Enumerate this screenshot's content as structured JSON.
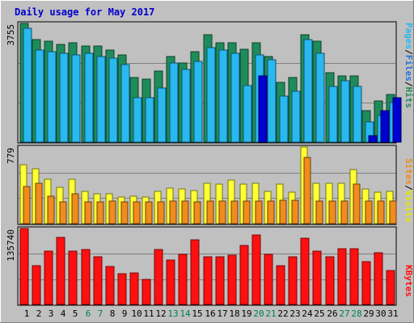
{
  "chart_data": [
    {
      "type": "bar",
      "title": "Daily usage for May 2017",
      "categories": [
        "1",
        "2",
        "3",
        "4",
        "5",
        "6",
        "7",
        "8",
        "9",
        "10",
        "11",
        "12",
        "13",
        "14",
        "15",
        "16",
        "17",
        "18",
        "19",
        "20",
        "21",
        "22",
        "23",
        "24",
        "25",
        "26",
        "27",
        "28",
        "29",
        "30",
        "31"
      ],
      "weekend_days": [
        "6",
        "7",
        "13",
        "14",
        "20",
        "21",
        "27",
        "28"
      ],
      "ylabel_parts": [
        "Pages",
        "/",
        "Files",
        "/",
        "Hits"
      ],
      "ymax_label": "3755",
      "ylim": [
        0,
        3755
      ],
      "series": [
        {
          "name": "Hits",
          "color": "#1e8c5a",
          "values": [
            3755,
            3250,
            3200,
            3100,
            3150,
            3050,
            3050,
            2900,
            2750,
            2050,
            2000,
            2250,
            2700,
            2500,
            2850,
            3400,
            3150,
            3150,
            2950,
            3150,
            2700,
            1900,
            2050,
            3400,
            3200,
            2200,
            2100,
            2100,
            1000,
            1300,
            1500
          ]
        },
        {
          "name": "Files",
          "color": "#29b8f0",
          "values": [
            3600,
            2900,
            2850,
            2800,
            2750,
            2800,
            2700,
            2650,
            2450,
            1400,
            1400,
            1700,
            2500,
            2300,
            2550,
            3000,
            2900,
            2800,
            1800,
            2750,
            2600,
            1450,
            1600,
            3250,
            2800,
            1750,
            1950,
            1750,
            650,
            850,
            1250
          ]
        },
        {
          "name": "Pages",
          "color": "#0000d0",
          "values": [
            0,
            0,
            0,
            0,
            0,
            0,
            0,
            0,
            0,
            0,
            0,
            0,
            0,
            0,
            0,
            0,
            0,
            0,
            0,
            2100,
            0,
            0,
            0,
            0,
            0,
            0,
            0,
            0,
            200,
            1000,
            1400
          ]
        }
      ]
    },
    {
      "type": "bar",
      "ylabel_parts": [
        "Sites",
        "/",
        "Visits"
      ],
      "ymax_label": "779",
      "ylim": [
        0,
        779
      ],
      "series": [
        {
          "name": "Visits",
          "color": "#ffff33",
          "values": [
            600,
            560,
            450,
            370,
            450,
            330,
            300,
            300,
            270,
            280,
            270,
            330,
            360,
            350,
            340,
            410,
            400,
            440,
            400,
            410,
            330,
            400,
            320,
            779,
            410,
            410,
            410,
            550,
            350,
            320,
            330
          ]
        },
        {
          "name": "Sites",
          "color": "#f08c1e",
          "values": [
            380,
            410,
            280,
            220,
            300,
            220,
            220,
            230,
            220,
            220,
            220,
            220,
            230,
            230,
            220,
            230,
            230,
            230,
            230,
            230,
            230,
            240,
            240,
            670,
            230,
            230,
            230,
            400,
            230,
            230,
            230
          ]
        }
      ]
    },
    {
      "type": "bar",
      "ylabel_parts": [
        "KBytes"
      ],
      "ymax_label": "135740",
      "ylim": [
        0,
        135740
      ],
      "series": [
        {
          "name": "KBytes",
          "color": "#ff1010",
          "values": [
            135740,
            70000,
            95000,
            120000,
            95000,
            98000,
            85000,
            68000,
            55000,
            57000,
            45000,
            98000,
            80000,
            90000,
            115000,
            85000,
            85000,
            88000,
            105000,
            124000,
            90000,
            70000,
            85000,
            118000,
            95000,
            85000,
            100000,
            100000,
            76000,
            92000,
            60000
          ]
        }
      ]
    }
  ],
  "colors": {
    "background": "#c0c0c0",
    "plot": "#c0c0c0",
    "title": "#0000cc",
    "weekend_label": "#00804d",
    "weekday_label": "#000000"
  }
}
